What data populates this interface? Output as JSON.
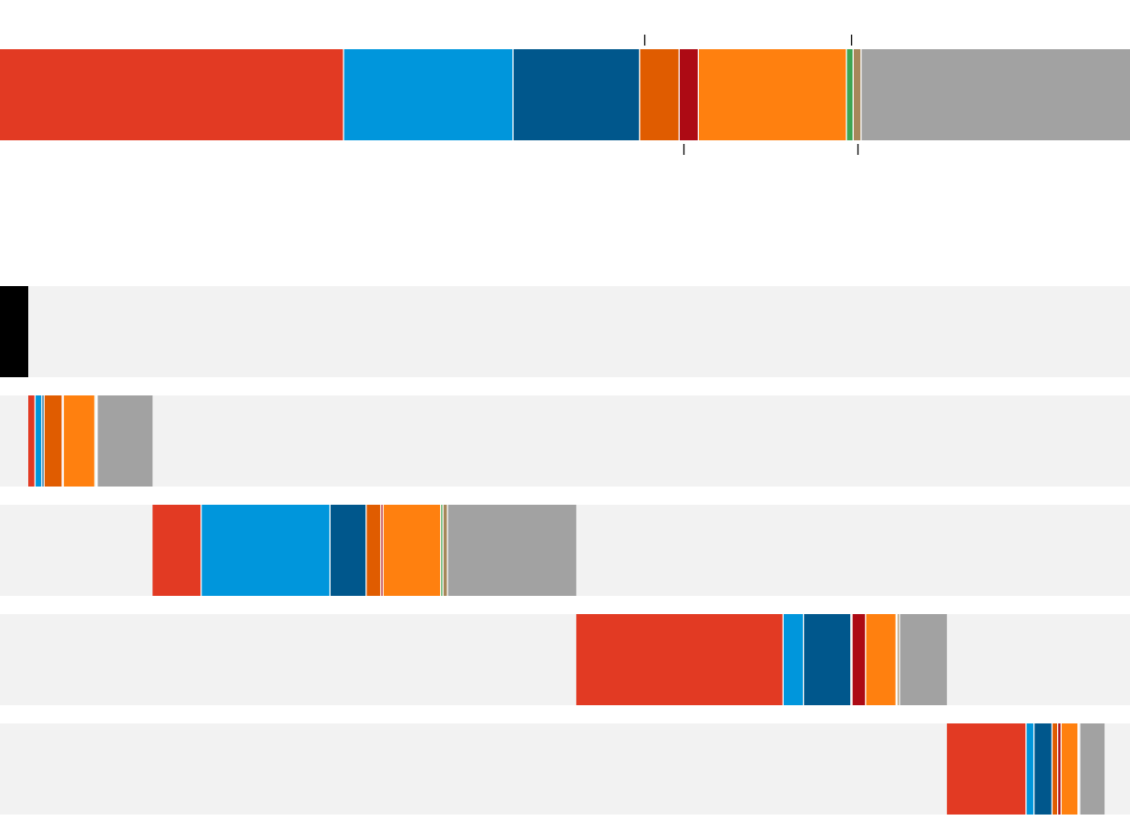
{
  "chart_data": {
    "type": "bar",
    "orientation": "horizontal",
    "stacked": true,
    "segment_order": [
      "red",
      "light-blue",
      "dark-blue",
      "dark-orange",
      "dark-red",
      "orange",
      "green",
      "tan",
      "grey"
    ],
    "colors": {
      "red": "#E23A23",
      "light-blue": "#0096DC",
      "dark-blue": "#00578C",
      "dark-orange": "#E05C00",
      "dark-red": "#AD0A14",
      "orange": "#FF800F",
      "green": "#3CA552",
      "tan": "#A6875A",
      "grey": "#A2A2A2"
    },
    "track_color": "#F2F2F2",
    "highlight_color": "#000000",
    "axis_max": 100,
    "total": {
      "segments": [
        30.4,
        15.0,
        11.2,
        3.5,
        1.7,
        13.1,
        0.6,
        0.7,
        23.8
      ],
      "tick_marks": [
        {
          "at": 57.0,
          "side": "top"
        },
        {
          "at": 60.5,
          "side": "bottom"
        },
        {
          "at": 75.3,
          "side": "top"
        },
        {
          "at": 75.9,
          "side": "bottom"
        }
      ]
    },
    "groups": [
      {
        "highlight": true,
        "value": 2.5
      },
      {
        "segments": [
          0.6,
          0.6,
          0.2,
          1.6,
          0.1,
          2.8,
          0.1,
          0.1,
          4.9
        ]
      },
      {
        "segments": [
          4.3,
          11.4,
          3.2,
          1.3,
          0.2,
          5.1,
          0.2,
          0.4,
          11.4
        ]
      },
      {
        "segments": [
          18.3,
          1.8,
          4.2,
          0.1,
          1.2,
          2.7,
          0.1,
          0.2,
          4.2
        ]
      },
      {
        "segments": [
          7.0,
          0.7,
          1.6,
          0.5,
          0.3,
          1.5,
          0.05,
          0.1,
          2.2
        ]
      }
    ]
  }
}
